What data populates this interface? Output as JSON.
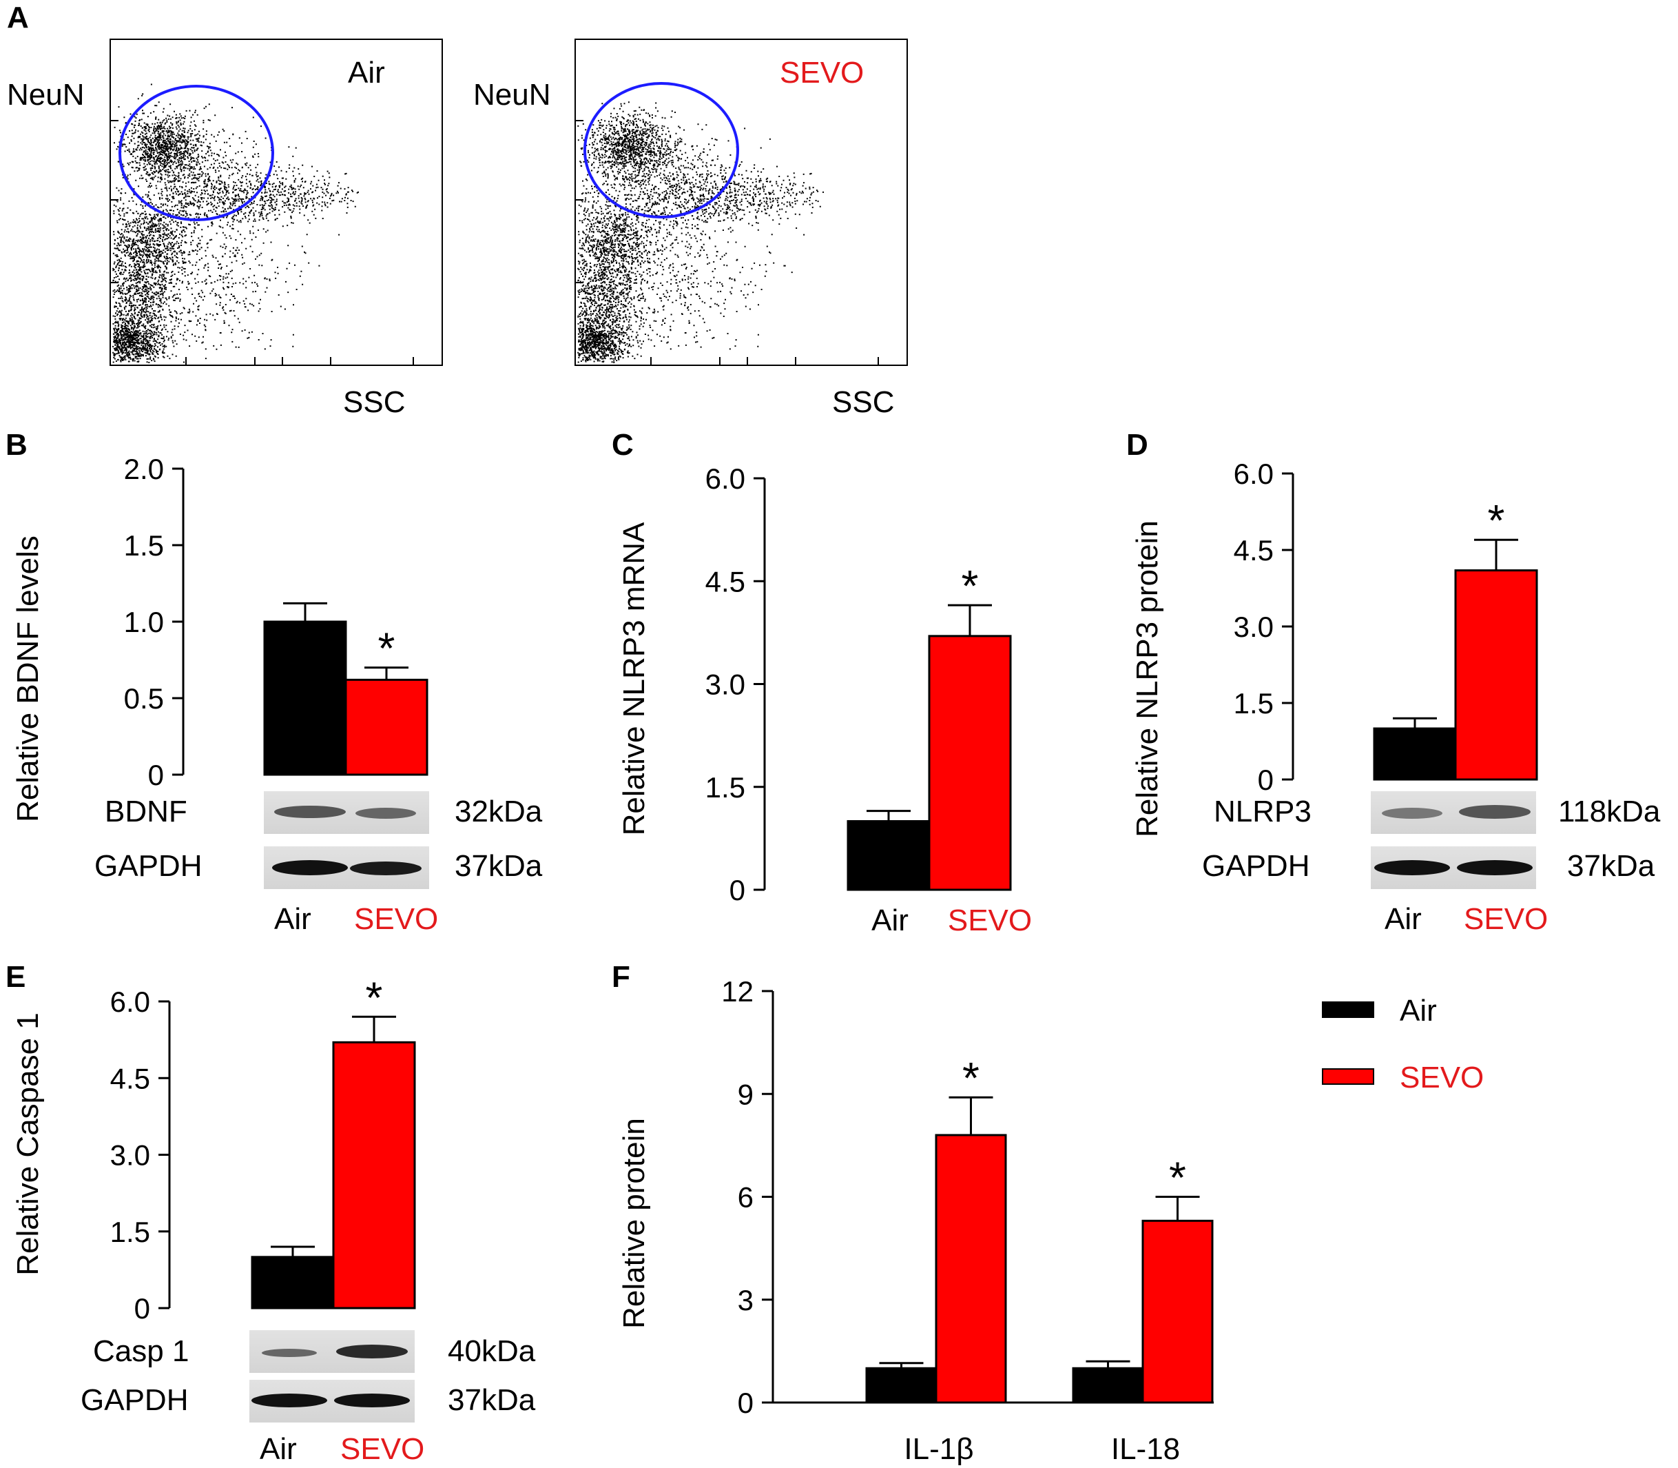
{
  "colors": {
    "air": "#000000",
    "sevo": "#ff0000",
    "sevo_text": "#e31a1c",
    "gate": "#1c1cff"
  },
  "chart_data": [
    {
      "panel": "A",
      "type": "scatter",
      "name": "flow-air",
      "title": "Air",
      "ylabel": "NeuN",
      "xlabel": "SSC",
      "note": "flow cytometry dot plot, neuronal population gated by ellipse"
    },
    {
      "panel": "A",
      "type": "scatter",
      "name": "flow-sevo",
      "title": "SEVO",
      "ylabel": "NeuN",
      "xlabel": "SSC"
    },
    {
      "panel": "B",
      "type": "bar",
      "name": "bdnf",
      "ylabel": "Relative BDNF levels",
      "categories": [
        "Air",
        "SEVO"
      ],
      "values": [
        1.0,
        0.62
      ],
      "errors": [
        0.12,
        0.08
      ],
      "significant": [
        false,
        true
      ],
      "ylim": [
        0,
        2.0
      ],
      "yticks": [
        "0",
        "0.5",
        "1.0",
        "1.5",
        "2.0"
      ],
      "ytick_values": [
        0,
        0.5,
        1.0,
        1.5,
        2.0
      ],
      "blot": {
        "rows": [
          {
            "name": "BDNF",
            "kda": "32kDa"
          },
          {
            "name": "GAPDH",
            "kda": "37kDa"
          }
        ]
      }
    },
    {
      "panel": "C",
      "type": "bar",
      "name": "nlrp3-mrna",
      "ylabel": "Relative NLRP3 mRNA",
      "categories": [
        "Air",
        "SEVO"
      ],
      "values": [
        1.0,
        3.7
      ],
      "errors": [
        0.15,
        0.45
      ],
      "significant": [
        false,
        true
      ],
      "ylim": [
        0,
        6.0
      ],
      "yticks": [
        "0",
        "1.5",
        "3.0",
        "4.5",
        "6.0"
      ],
      "ytick_values": [
        0,
        1.5,
        3.0,
        4.5,
        6.0
      ]
    },
    {
      "panel": "D",
      "type": "bar",
      "name": "nlrp3-protein",
      "ylabel": "Relative NLRP3 protein",
      "categories": [
        "Air",
        "SEVO"
      ],
      "values": [
        1.0,
        4.1
      ],
      "errors": [
        0.2,
        0.6
      ],
      "significant": [
        false,
        true
      ],
      "ylim": [
        0,
        6.0
      ],
      "yticks": [
        "0",
        "1.5",
        "3.0",
        "4.5",
        "6.0"
      ],
      "ytick_values": [
        0,
        1.5,
        3.0,
        4.5,
        6.0
      ],
      "blot": {
        "rows": [
          {
            "name": "NLRP3",
            "kda": "118kDa"
          },
          {
            "name": "GAPDH",
            "kda": "37kDa"
          }
        ]
      }
    },
    {
      "panel": "E",
      "type": "bar",
      "name": "caspase1",
      "ylabel": "Relative Caspase 1",
      "categories": [
        "Air",
        "SEVO"
      ],
      "values": [
        1.0,
        5.2
      ],
      "errors": [
        0.2,
        0.5
      ],
      "significant": [
        false,
        true
      ],
      "ylim": [
        0,
        6.0
      ],
      "yticks": [
        "0",
        "1.5",
        "3.0",
        "4.5",
        "6.0"
      ],
      "ytick_values": [
        0,
        1.5,
        3.0,
        4.5,
        6.0
      ],
      "blot": {
        "rows": [
          {
            "name": "Casp 1",
            "kda": "40kDa"
          },
          {
            "name": "GAPDH",
            "kda": "37kDa"
          }
        ]
      }
    },
    {
      "panel": "F",
      "type": "bar",
      "name": "cytokines",
      "ylabel": "Relative protein",
      "categories": [
        "IL-1β",
        "IL-18"
      ],
      "series": [
        {
          "name": "Air",
          "values": [
            1.0,
            1.0
          ],
          "errors": [
            0.15,
            0.2
          ],
          "significant": [
            false,
            false
          ]
        },
        {
          "name": "SEVO",
          "values": [
            7.8,
            5.3
          ],
          "errors": [
            1.1,
            0.7
          ],
          "significant": [
            true,
            true
          ]
        }
      ],
      "ylim": [
        0,
        12
      ],
      "yticks": [
        "0",
        "3",
        "6",
        "9",
        "12"
      ],
      "ytick_values": [
        0,
        3,
        6,
        9,
        12
      ],
      "legend": [
        "Air",
        "SEVO"
      ],
      "legend_position": "top-right"
    }
  ],
  "panel_labels": [
    "A",
    "B",
    "C",
    "D",
    "E",
    "F"
  ],
  "star": "*"
}
